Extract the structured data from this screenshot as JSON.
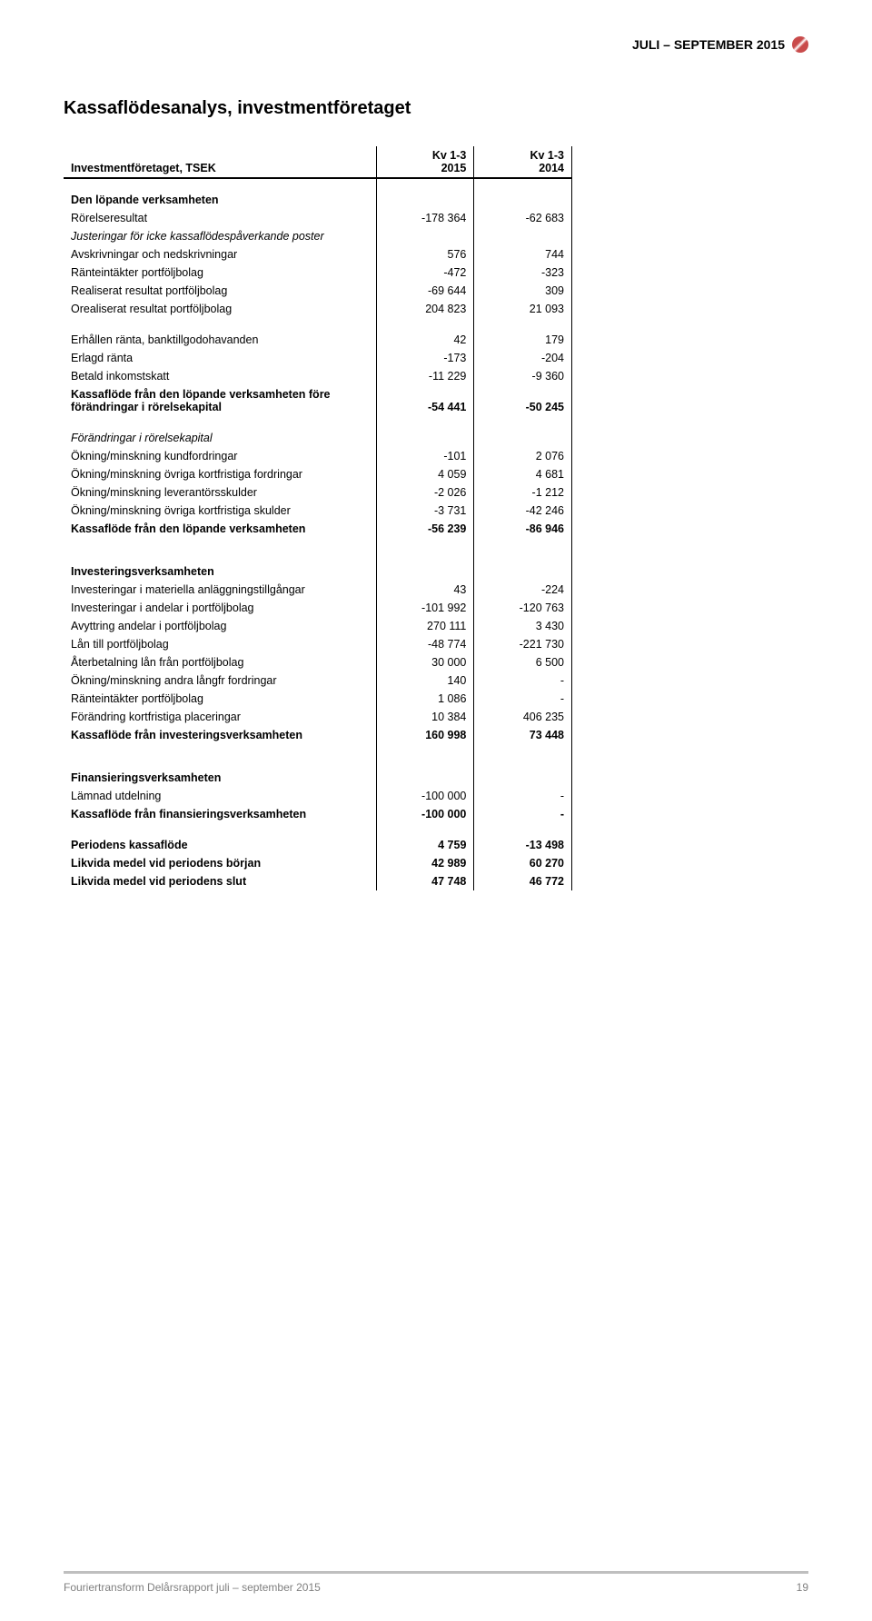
{
  "header": {
    "period": "JULI – SEPTEMBER 2015"
  },
  "title": "Kassaflödesanalys, investmentföretaget",
  "table": {
    "corner_label": "Investmentföretaget, TSEK",
    "col1_top": "Kv 1-3",
    "col1_bot": "2015",
    "col2_top": "Kv 1-3",
    "col2_bot": "2014",
    "sections": [
      {
        "heading": "Den löpande verksamheten",
        "rows": [
          {
            "label": "Rörelseresultat",
            "v1": "-178 364",
            "v2": "-62 683"
          },
          {
            "label": "Justeringar för icke kassaflödespåverkande poster",
            "italic": true,
            "v1": "",
            "v2": ""
          },
          {
            "label": "Avskrivningar och nedskrivningar",
            "v1": "576",
            "v2": "744"
          },
          {
            "label": "Ränteintäkter portföljbolag",
            "v1": "-472",
            "v2": "-323"
          },
          {
            "label": "Realiserat resultat portföljbolag",
            "v1": "-69 644",
            "v2": "309"
          },
          {
            "label": "Orealiserat resultat portföljbolag",
            "v1": "204 823",
            "v2": "21 093"
          }
        ]
      },
      {
        "rows": [
          {
            "label": "Erhållen ränta, banktillgodohavanden",
            "v1": "42",
            "v2": "179"
          },
          {
            "label": "Erlagd ränta",
            "v1": "-173",
            "v2": "-204"
          },
          {
            "label": "Betald inkomstskatt",
            "v1": "-11 229",
            "v2": "-9 360"
          },
          {
            "label": "Kassaflöde från den löpande verksamheten före förändringar i rörelsekapital",
            "bold": true,
            "v1": "-54 441",
            "v2": "-50 245"
          }
        ]
      },
      {
        "rows": [
          {
            "label": "Förändringar i rörelsekapital",
            "italic": true,
            "v1": "",
            "v2": ""
          },
          {
            "label": "Ökning/minskning kundfordringar",
            "v1": "-101",
            "v2": "2 076"
          },
          {
            "label": "Ökning/minskning övriga kortfristiga fordringar",
            "v1": "4 059",
            "v2": "4 681"
          },
          {
            "label": "Ökning/minskning leverantörsskulder",
            "v1": "-2 026",
            "v2": "-1 212"
          },
          {
            "label": "Ökning/minskning övriga kortfristiga skulder",
            "v1": "-3 731",
            "v2": "-42 246"
          },
          {
            "label": "Kassaflöde från den löpande verksamheten",
            "bold": true,
            "v1": "-56 239",
            "v2": "-86 946"
          }
        ]
      },
      {
        "heading": "Investeringsverksamheten",
        "rows": [
          {
            "label": "Investeringar i materiella anläggningstillgångar",
            "v1": "43",
            "v2": "-224"
          },
          {
            "label": "Investeringar i andelar i portföljbolag",
            "v1": "-101 992",
            "v2": "-120 763"
          },
          {
            "label": "Avyttring andelar i portföljbolag",
            "v1": "270 111",
            "v2": "3 430"
          },
          {
            "label": "Lån till portföljbolag",
            "v1": "-48 774",
            "v2": "-221 730"
          },
          {
            "label": "Återbetalning lån från portföljbolag",
            "v1": "30 000",
            "v2": "6 500"
          },
          {
            "label": "Ökning/minskning andra långfr fordringar",
            "v1": "140",
            "v2": "-"
          },
          {
            "label": "Ränteintäkter portföljbolag",
            "v1": "1 086",
            "v2": "-"
          },
          {
            "label": "Förändring kortfristiga placeringar",
            "v1": "10 384",
            "v2": "406 235"
          },
          {
            "label": "Kassaflöde från investeringsverksamheten",
            "bold": true,
            "v1": "160 998",
            "v2": "73 448"
          }
        ]
      },
      {
        "heading": "Finansieringsverksamheten",
        "rows": [
          {
            "label": "Lämnad utdelning",
            "v1": "-100 000",
            "v2": "-"
          },
          {
            "label": "Kassaflöde från finansieringsverksamheten",
            "bold": true,
            "v1": "-100 000",
            "v2": "-"
          }
        ]
      },
      {
        "rows": [
          {
            "label": "Periodens kassaflöde",
            "bold": true,
            "v1": "4 759",
            "v2": "-13 498"
          },
          {
            "label": "Likvida medel vid periodens början",
            "bold": true,
            "v1": "42 989",
            "v2": "60 270"
          },
          {
            "label": "Likvida medel vid periodens slut",
            "bold": true,
            "v1": "47 748",
            "v2": "46 772"
          }
        ]
      }
    ]
  },
  "footer": {
    "text": "Fouriertransform Delårsrapport juli – september 2015",
    "page": "19"
  }
}
